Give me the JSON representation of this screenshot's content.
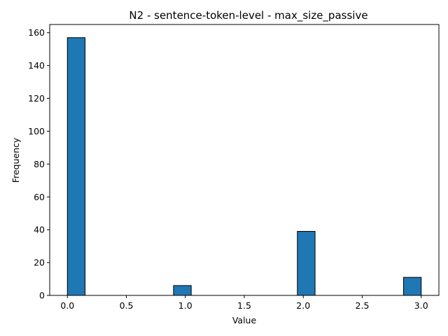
{
  "chart_data": {
    "type": "bar",
    "title": "N2 - sentence-token-level - max_size_passive",
    "xlabel": "Value",
    "ylabel": "Frequency",
    "bins": [
      {
        "x0": 0.0,
        "x1": 0.15,
        "count": 157
      },
      {
        "x0": 0.9,
        "x1": 1.05,
        "count": 6
      },
      {
        "x0": 1.95,
        "x1": 2.1,
        "count": 39
      },
      {
        "x0": 2.85,
        "x1": 3.0,
        "count": 11
      }
    ],
    "xlim": [
      -0.15,
      3.15
    ],
    "ylim": [
      0,
      165
    ],
    "xticks": [
      0.0,
      0.5,
      1.0,
      1.5,
      2.0,
      2.5,
      3.0
    ],
    "xtick_labels": [
      "0.0",
      "0.5",
      "1.0",
      "1.5",
      "2.0",
      "2.5",
      "3.0"
    ],
    "yticks": [
      0,
      20,
      40,
      60,
      80,
      100,
      120,
      140,
      160
    ],
    "ytick_labels": [
      "0",
      "20",
      "40",
      "60",
      "80",
      "100",
      "120",
      "140",
      "160"
    ],
    "bar_color": "#1f77b4",
    "edge_color": "#000000",
    "grid": false,
    "legend": "none"
  }
}
